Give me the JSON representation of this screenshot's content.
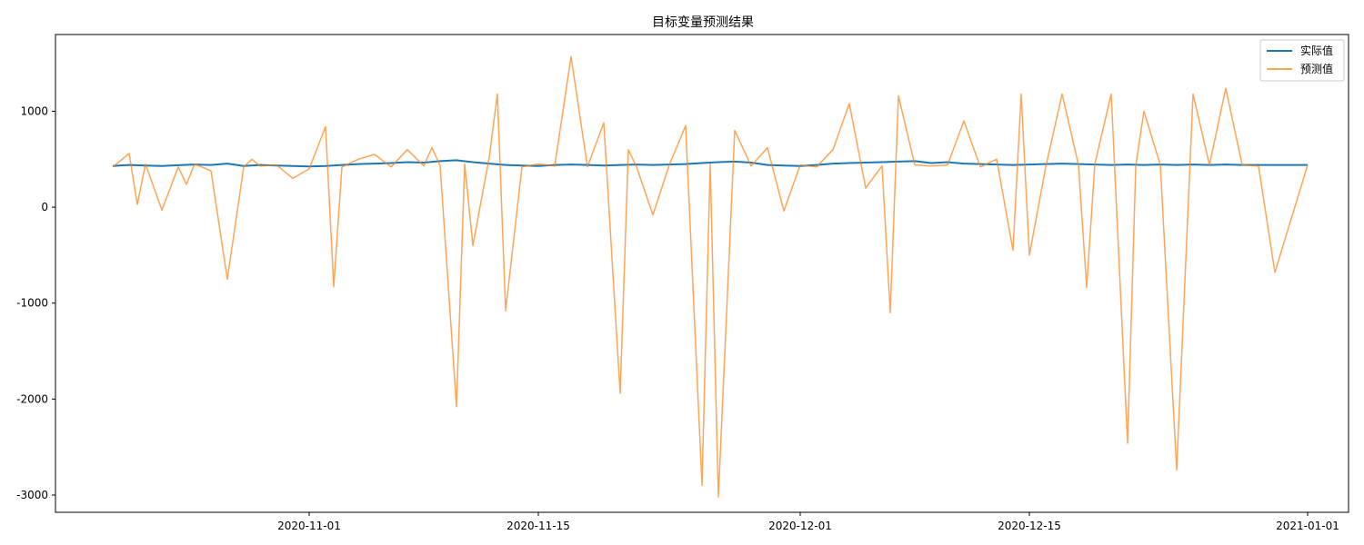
{
  "chart_data": {
    "type": "line",
    "title": "目标变量预测结果",
    "xlabel": "",
    "ylabel": "",
    "x_ticks": [
      "2020-11-01",
      "2020-11-15",
      "2020-12-01",
      "2020-12-15",
      "2021-01-01"
    ],
    "y_ticks": [
      1000,
      0,
      -1000,
      -2000,
      -3000
    ],
    "xlim": [
      "2020-10-16T12:00",
      "2021-01-03T12:00"
    ],
    "ylim": [
      -3180,
      1800
    ],
    "grid": false,
    "legend_position": "top-right",
    "colors": {
      "actual": "#1f77b4",
      "predicted": "#ff7f0e"
    },
    "series": [
      {
        "name": "实际值",
        "color": "#1f77b4",
        "x": [
          "2020-10-20",
          "2020-10-21",
          "2020-10-22",
          "2020-10-23",
          "2020-10-24",
          "2020-10-25",
          "2020-10-26",
          "2020-10-27",
          "2020-10-28",
          "2020-10-29",
          "2020-10-30",
          "2020-10-31",
          "2020-11-01",
          "2020-11-02",
          "2020-11-03",
          "2020-11-04",
          "2020-11-05",
          "2020-11-06",
          "2020-11-07",
          "2020-11-08",
          "2020-11-09",
          "2020-11-10",
          "2020-11-11",
          "2020-11-12",
          "2020-11-13",
          "2020-11-14",
          "2020-11-15",
          "2020-11-16",
          "2020-11-17",
          "2020-11-18",
          "2020-11-19",
          "2020-11-20",
          "2020-11-21",
          "2020-11-22",
          "2020-11-23",
          "2020-11-24",
          "2020-11-25",
          "2020-11-26",
          "2020-11-27",
          "2020-11-28",
          "2020-11-29",
          "2020-11-30",
          "2020-12-01",
          "2020-12-02",
          "2020-12-03",
          "2020-12-04",
          "2020-12-05",
          "2020-12-06",
          "2020-12-07",
          "2020-12-08",
          "2020-12-09",
          "2020-12-10",
          "2020-12-11",
          "2020-12-12",
          "2020-12-13",
          "2020-12-14",
          "2020-12-15",
          "2020-12-16",
          "2020-12-17",
          "2020-12-18",
          "2020-12-19",
          "2020-12-20",
          "2020-12-21",
          "2020-12-22",
          "2020-12-23",
          "2020-12-24",
          "2020-12-25",
          "2020-12-26",
          "2020-12-27",
          "2020-12-28",
          "2020-12-29",
          "2020-12-30",
          "2021-01-01"
        ],
        "values": [
          430,
          440,
          435,
          430,
          438,
          445,
          440,
          455,
          430,
          440,
          435,
          430,
          425,
          430,
          440,
          450,
          455,
          460,
          470,
          465,
          480,
          490,
          470,
          455,
          440,
          435,
          430,
          440,
          445,
          440,
          435,
          440,
          445,
          440,
          445,
          450,
          460,
          470,
          475,
          465,
          440,
          435,
          430,
          440,
          455,
          460,
          465,
          470,
          475,
          480,
          460,
          470,
          455,
          450,
          445,
          440,
          445,
          450,
          455,
          450,
          445,
          440,
          445,
          440,
          445,
          440,
          445,
          440,
          445,
          440,
          440,
          440,
          440
        ]
      },
      {
        "name": "预测值",
        "color": "#ff7f0e",
        "x": [
          "2020-10-20",
          "2020-10-21",
          "2020-10-21T12:00",
          "2020-10-22",
          "2020-10-23",
          "2020-10-24",
          "2020-10-24T12:00",
          "2020-10-25",
          "2020-10-26",
          "2020-10-27",
          "2020-10-28",
          "2020-10-28T12:00",
          "2020-10-29",
          "2020-10-30",
          "2020-10-31",
          "2020-11-01",
          "2020-11-02",
          "2020-11-02T12:00",
          "2020-11-03",
          "2020-11-04",
          "2020-11-05",
          "2020-11-06",
          "2020-11-07",
          "2020-11-08",
          "2020-11-08T12:00",
          "2020-11-09",
          "2020-11-10",
          "2020-11-10T12:00",
          "2020-11-11",
          "2020-11-12",
          "2020-11-12T12:00",
          "2020-11-13",
          "2020-11-14",
          "2020-11-15",
          "2020-11-16",
          "2020-11-17",
          "2020-11-18",
          "2020-11-19",
          "2020-11-20",
          "2020-11-20T12:00",
          "2020-11-21",
          "2020-11-22",
          "2020-11-23",
          "2020-11-24",
          "2020-11-25",
          "2020-11-25T12:00",
          "2020-11-26",
          "2020-11-27",
          "2020-11-28",
          "2020-11-29",
          "2020-11-30",
          "2020-12-01",
          "2020-12-02",
          "2020-12-03",
          "2020-12-04",
          "2020-12-05",
          "2020-12-06",
          "2020-12-06T12:00",
          "2020-12-07",
          "2020-12-08",
          "2020-12-09",
          "2020-12-10",
          "2020-12-11",
          "2020-12-12",
          "2020-12-13",
          "2020-12-14",
          "2020-12-14T12:00",
          "2020-12-15",
          "2020-12-16",
          "2020-12-17",
          "2020-12-18",
          "2020-12-18T12:00",
          "2020-12-19",
          "2020-12-20",
          "2020-12-21",
          "2020-12-21T12:00",
          "2020-12-22",
          "2020-12-23",
          "2020-12-24",
          "2020-12-25",
          "2020-12-26",
          "2020-12-27",
          "2020-12-28",
          "2020-12-29",
          "2020-12-30",
          "2021-01-01"
        ],
        "values": [
          420,
          560,
          30,
          450,
          -30,
          420,
          240,
          450,
          380,
          -750,
          420,
          500,
          430,
          440,
          300,
          400,
          840,
          -830,
          420,
          500,
          550,
          420,
          600,
          430,
          620,
          430,
          -2080,
          450,
          -400,
          520,
          1180,
          -1080,
          420,
          450,
          430,
          1570,
          420,
          880,
          -1940,
          600,
          420,
          -80,
          440,
          850,
          -2900,
          450,
          -3020,
          800,
          430,
          620,
          -40,
          440,
          420,
          600,
          1080,
          200,
          430,
          -1100,
          1160,
          440,
          430,
          440,
          900,
          420,
          500,
          -450,
          1180,
          -500,
          420,
          1180,
          440,
          -840,
          450,
          1180,
          -2460,
          430,
          1000,
          440,
          -2740,
          1180,
          440,
          1240,
          440,
          430,
          -680,
          440
        ]
      }
    ]
  }
}
